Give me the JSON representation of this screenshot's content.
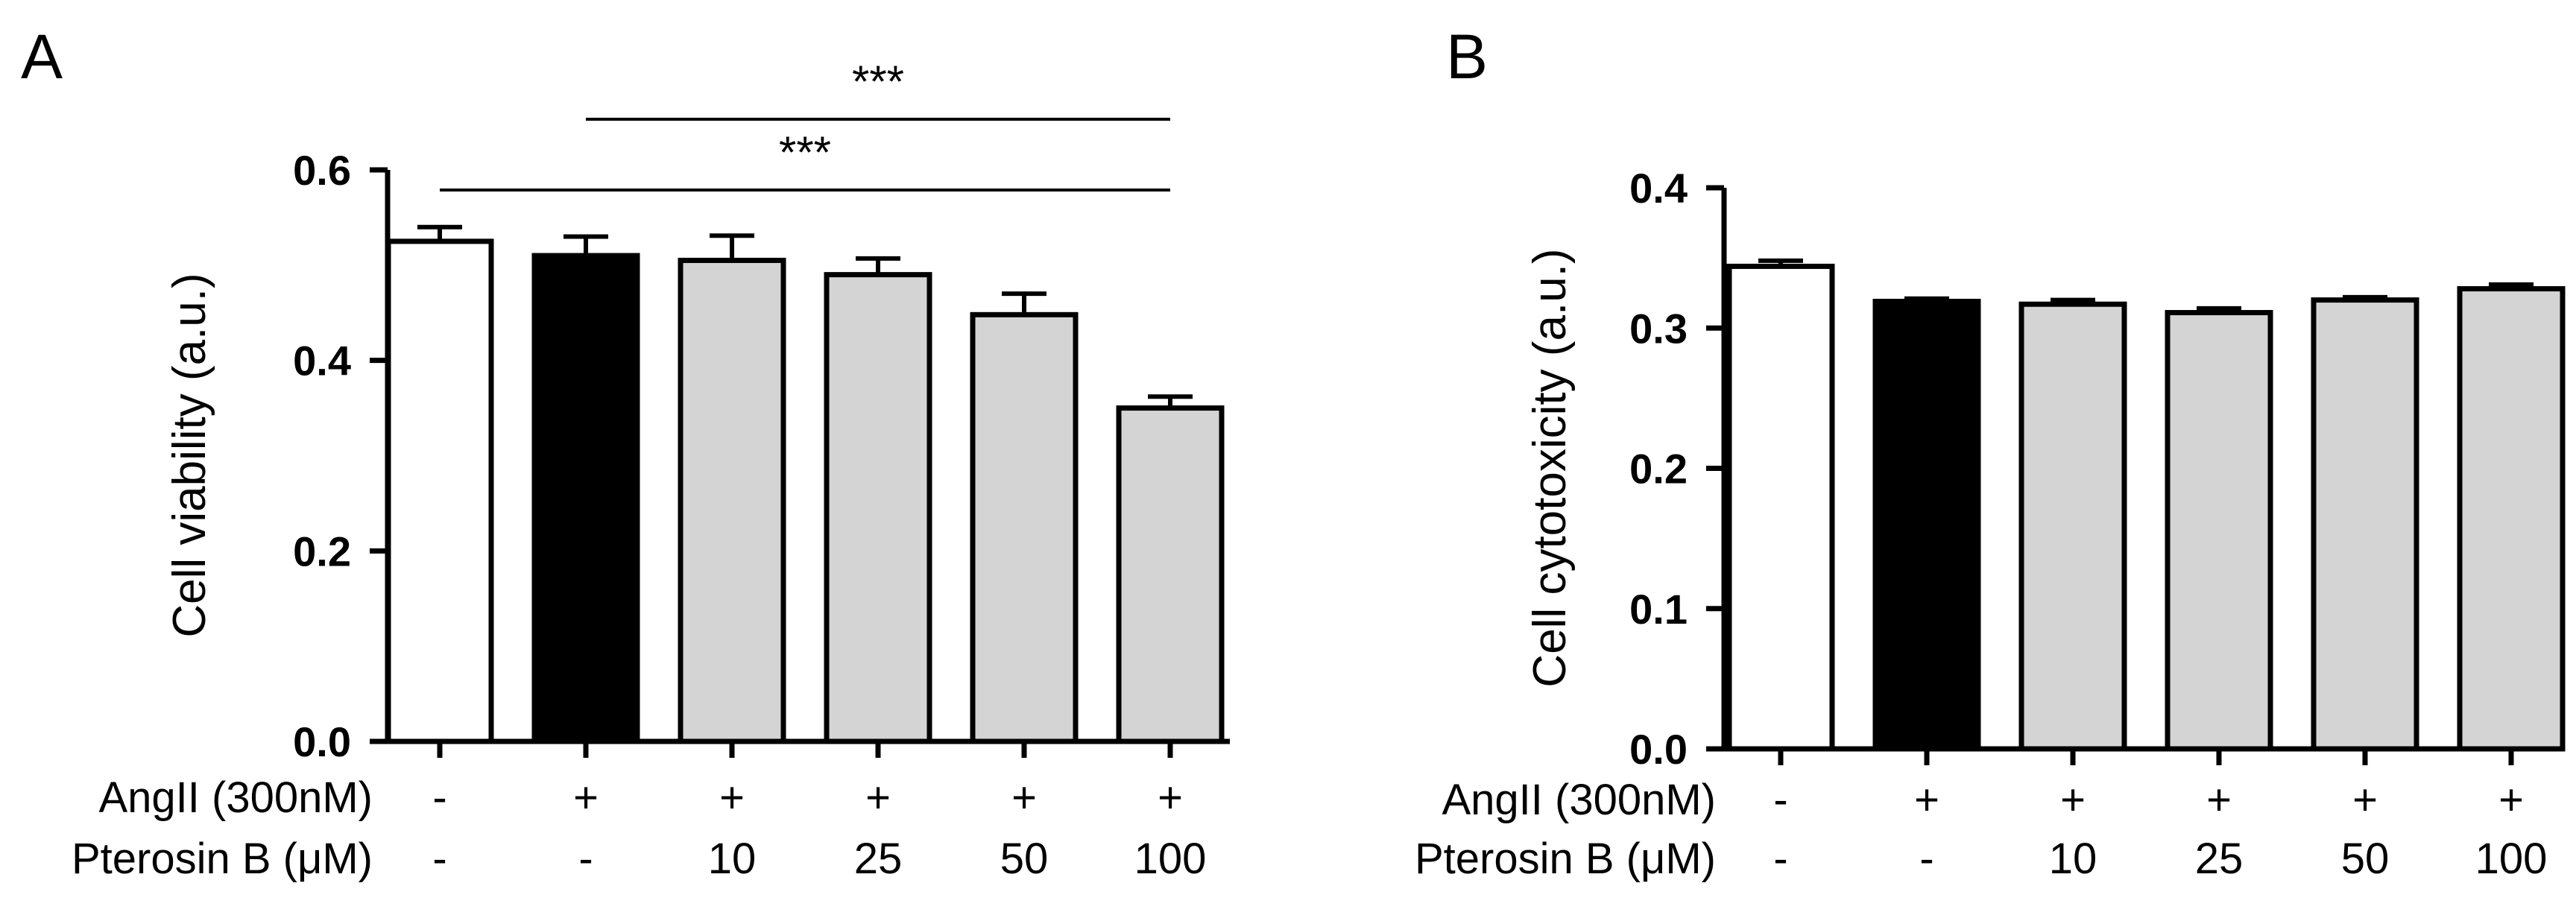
{
  "chart_data": [
    {
      "panel": "A",
      "type": "bar",
      "ylabel": "Cell viability (a.u.)",
      "ylim": [
        0,
        0.6
      ],
      "yticks": [
        "0.0",
        "0.2",
        "0.4",
        "0.6"
      ],
      "yticks_values": [
        0,
        0.2,
        0.4,
        0.6
      ],
      "row_labels": [
        "AngII (300nM)",
        "Pterosin B (μM)"
      ],
      "angII": [
        "-",
        "+",
        "+",
        "+",
        "+",
        "+"
      ],
      "pterosin": [
        "-",
        "-",
        "10",
        "25",
        "50",
        "100"
      ],
      "values": [
        0.525,
        0.51,
        0.505,
        0.49,
        0.448,
        0.35
      ],
      "errors": [
        0.015,
        0.02,
        0.026,
        0.017,
        0.022,
        0.012
      ],
      "fills": [
        "#ffffff",
        "#000000",
        "#d4d4d4",
        "#d4d4d4",
        "#d4d4d4",
        "#d4d4d4"
      ],
      "significance": [
        {
          "from": 1,
          "to": 5,
          "label": "***"
        },
        {
          "from": 0,
          "to": 5,
          "label": "***"
        }
      ]
    },
    {
      "panel": "B",
      "type": "bar",
      "ylabel": "Cell cytotoxicity (a.u.)",
      "ylim": [
        0,
        0.4
      ],
      "yticks": [
        "0.0",
        "0.1",
        "0.2",
        "0.3",
        "0.4"
      ],
      "yticks_values": [
        0,
        0.1,
        0.2,
        0.3,
        0.4
      ],
      "row_labels": [
        "AngII (300nM)",
        "Pterosin B (μM)"
      ],
      "angII": [
        "-",
        "+",
        "+",
        "+",
        "+",
        "+"
      ],
      "pterosin": [
        "-",
        "-",
        "10",
        "25",
        "50",
        "100"
      ],
      "values": [
        0.344,
        0.319,
        0.317,
        0.311,
        0.32,
        0.328
      ],
      "errors": [
        0.004,
        0.002,
        0.003,
        0.003,
        0.002,
        0.003
      ],
      "fills": [
        "#ffffff",
        "#000000",
        "#d4d4d4",
        "#d4d4d4",
        "#d4d4d4",
        "#d4d4d4"
      ],
      "significance": []
    }
  ]
}
